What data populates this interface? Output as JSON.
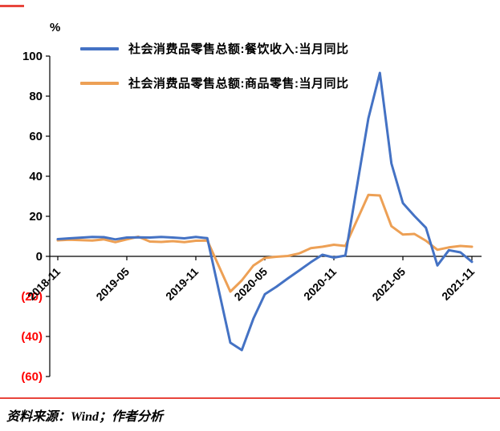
{
  "decor": {
    "accent_red": "#e8453c"
  },
  "unit_label": "%",
  "footer": {
    "source_text": "资料来源：Wind；作者分析"
  },
  "chart_data": {
    "type": "line",
    "title": "",
    "xlabel": "",
    "ylabel": "%",
    "ylim": [
      -60,
      100
    ],
    "ytick_interval": 20,
    "yticks": [
      100,
      80,
      60,
      40,
      20,
      0,
      -20,
      -40,
      -60
    ],
    "negative_tick_format": "parentheses",
    "negative_tick_color": "#ff0000",
    "positive_tick_color": "#000000",
    "grid": false,
    "legend_position": "top-left",
    "xticks": [
      "2018-11",
      "2019-05",
      "2019-11",
      "2020-05",
      "2020-11",
      "2021-05",
      "2021-11"
    ],
    "x": [
      "2018-11",
      "2018-12",
      "2019-02",
      "2019-03",
      "2019-04",
      "2019-05",
      "2019-06",
      "2019-07",
      "2019-08",
      "2019-09",
      "2019-10",
      "2019-11",
      "2019-12",
      "2020-02",
      "2020-03",
      "2020-04",
      "2020-05",
      "2020-06",
      "2020-07",
      "2020-08",
      "2020-09",
      "2020-10",
      "2020-11",
      "2020-12",
      "2021-02",
      "2021-03",
      "2021-04",
      "2021-05",
      "2021-06",
      "2021-07",
      "2021-08",
      "2021-09",
      "2021-10",
      "2021-11"
    ],
    "series": [
      {
        "name": "社会消费品零售总额:餐饮收入:当月同比",
        "color": "#4472c4",
        "values": [
          8.6,
          9.0,
          9.7,
          9.6,
          8.5,
          9.4,
          9.5,
          9.4,
          9.7,
          9.4,
          9.0,
          9.7,
          9.1,
          -43.1,
          -46.8,
          -31.1,
          -18.9,
          -15.2,
          -11.0,
          -7.0,
          -2.9,
          0.8,
          -0.6,
          0.4,
          68.9,
          91.6,
          46.4,
          26.6,
          20.2,
          14.3,
          -4.5,
          3.1,
          2.0,
          -2.7
        ]
      },
      {
        "name": "社会消费品零售总额:商品零售:当月同比",
        "color": "#eda055",
        "values": [
          8.0,
          8.3,
          7.9,
          8.5,
          7.1,
          8.5,
          9.8,
          7.4,
          7.2,
          7.6,
          7.1,
          7.8,
          7.9,
          -17.6,
          -12.0,
          -4.6,
          -0.8,
          -0.2,
          0.2,
          1.5,
          4.1,
          4.8,
          5.8,
          5.2,
          30.7,
          30.4,
          15.1,
          10.9,
          11.2,
          7.8,
          3.3,
          4.5,
          5.2,
          4.8
        ]
      }
    ]
  }
}
